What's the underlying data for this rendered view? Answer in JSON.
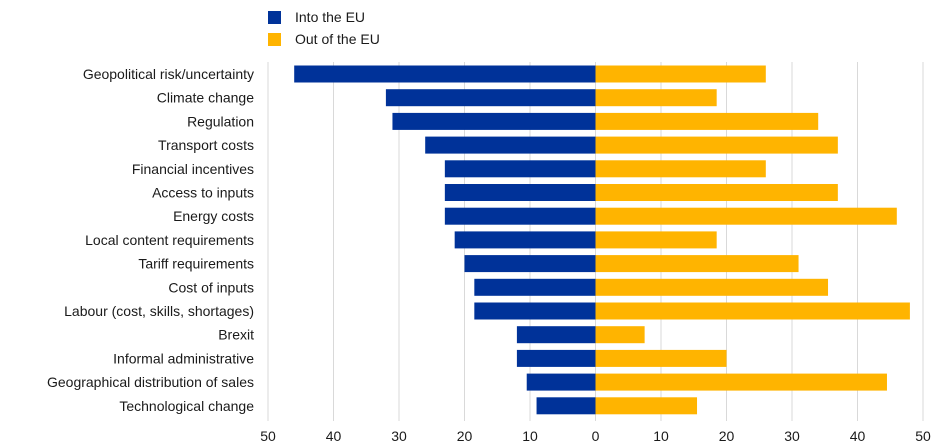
{
  "chart_data": {
    "type": "bar",
    "orientation": "horizontal-diverging",
    "title": "",
    "xlabel": "",
    "ylabel": "",
    "xlim": [
      -50,
      50
    ],
    "x_ticks": [
      -50,
      -40,
      -30,
      -20,
      -10,
      0,
      10,
      20,
      30,
      40,
      50
    ],
    "x_tick_labels": [
      "50",
      "40",
      "30",
      "20",
      "10",
      "0",
      "10",
      "20",
      "30",
      "40",
      "50"
    ],
    "grid": true,
    "legend_position": "top-left",
    "categories": [
      "Geopolitical risk/uncertainty",
      "Climate change",
      "Regulation",
      "Transport costs",
      "Financial incentives ",
      "Access to inputs",
      "Energy costs",
      "Local content requirements",
      "Tariff requirements ",
      "Cost of inputs",
      "Labour (cost, skills, shortages)",
      "Brexit",
      "Informal administrative",
      "Geographical distribution of sales ",
      "Technological change "
    ],
    "series": [
      {
        "name": "Into the EU",
        "color": "#003299",
        "direction": "left",
        "values": [
          46,
          32,
          31,
          26,
          23,
          23,
          23,
          21.5,
          20,
          18.5,
          18.5,
          12,
          12,
          10.5,
          9
        ]
      },
      {
        "name": "Out of the EU",
        "color": "#FFB400",
        "direction": "right",
        "values": [
          26,
          18.5,
          34,
          37,
          26,
          37,
          46,
          18.5,
          31,
          35.5,
          48,
          7.5,
          20,
          44.5,
          15.5
        ]
      }
    ]
  }
}
